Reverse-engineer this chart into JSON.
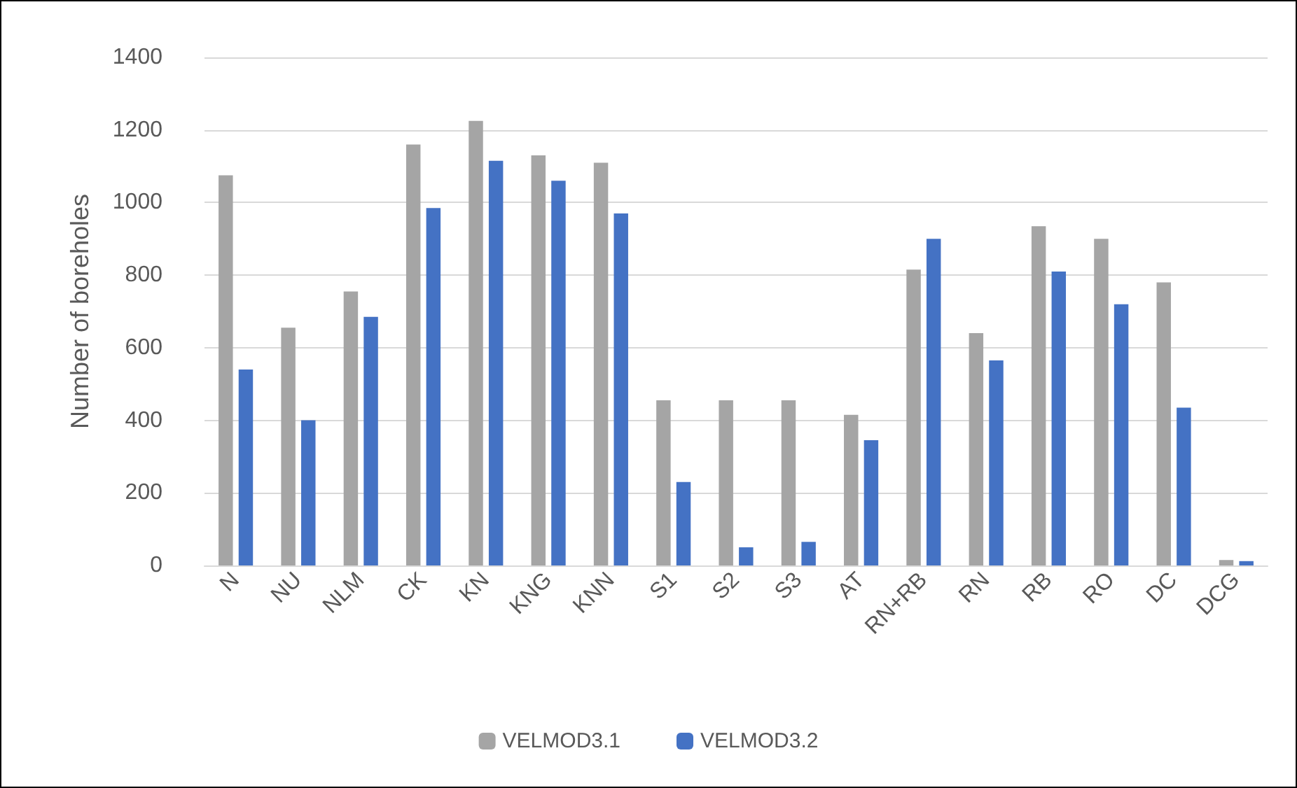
{
  "chart_data": {
    "type": "bar",
    "ylabel": "Number of boreholes",
    "categories": [
      "N",
      "NU",
      "NLM",
      "CK",
      "KN",
      "KNG",
      "KNN",
      "S1",
      "S2",
      "S3",
      "AT",
      "RN+RB",
      "RN",
      "RB",
      "RO",
      "DC",
      "DCG"
    ],
    "series": [
      {
        "name": "VELMOD3.1",
        "color": "#a5a5a5",
        "values": [
          1075,
          655,
          755,
          1160,
          1225,
          1130,
          1110,
          455,
          455,
          455,
          415,
          815,
          640,
          935,
          900,
          780,
          15
        ]
      },
      {
        "name": "VELMOD3.2",
        "color": "#4472c4",
        "values": [
          540,
          400,
          685,
          985,
          1115,
          1060,
          970,
          230,
          50,
          65,
          345,
          900,
          565,
          810,
          720,
          435,
          12
        ]
      }
    ],
    "ylim": [
      0,
      1400
    ],
    "yticks": [
      0,
      200,
      400,
      600,
      800,
      1000,
      1200,
      1400
    ],
    "grid": "y",
    "legend": "bottom"
  }
}
